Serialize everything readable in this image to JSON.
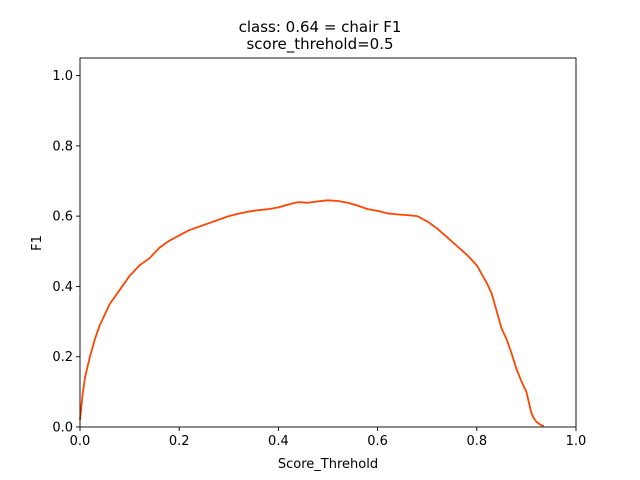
{
  "chart_data": {
    "type": "line",
    "title": "class: 0.64 = chair F1",
    "subtitle": "score_threhold=0.5",
    "xlabel": "Score_Threhold",
    "ylabel": "F1",
    "xlim": [
      0.0,
      1.0
    ],
    "ylim": [
      0.0,
      1.05
    ],
    "xticks": [
      "0.0",
      "0.2",
      "0.4",
      "0.6",
      "0.8",
      "1.0"
    ],
    "yticks": [
      "0.0",
      "0.2",
      "0.4",
      "0.6",
      "0.8",
      "1.0"
    ],
    "grid": false,
    "line_color": "#ff4500",
    "series": [
      {
        "x": [
          0.0,
          0.005,
          0.01,
          0.02,
          0.03,
          0.04,
          0.05,
          0.06,
          0.07,
          0.08,
          0.1,
          0.12,
          0.14,
          0.16,
          0.18,
          0.2,
          0.22,
          0.24,
          0.26,
          0.28,
          0.3,
          0.32,
          0.34,
          0.36,
          0.38,
          0.4,
          0.42,
          0.44,
          0.46,
          0.48,
          0.5,
          0.52,
          0.54,
          0.56,
          0.58,
          0.6,
          0.62,
          0.64,
          0.66,
          0.68,
          0.7,
          0.72,
          0.74,
          0.76,
          0.78,
          0.8,
          0.82,
          0.83,
          0.84,
          0.85,
          0.86,
          0.87,
          0.88,
          0.89,
          0.9,
          0.905,
          0.91,
          0.915,
          0.92,
          0.925,
          0.93,
          0.935
        ],
        "y": [
          0.02,
          0.09,
          0.14,
          0.2,
          0.25,
          0.29,
          0.32,
          0.35,
          0.37,
          0.39,
          0.43,
          0.46,
          0.48,
          0.51,
          0.53,
          0.545,
          0.56,
          0.57,
          0.58,
          0.59,
          0.6,
          0.607,
          0.613,
          0.617,
          0.62,
          0.625,
          0.633,
          0.64,
          0.638,
          0.642,
          0.645,
          0.643,
          0.638,
          0.63,
          0.62,
          0.615,
          0.608,
          0.605,
          0.603,
          0.6,
          0.585,
          0.565,
          0.54,
          0.515,
          0.49,
          0.46,
          0.41,
          0.38,
          0.33,
          0.28,
          0.25,
          0.21,
          0.165,
          0.13,
          0.1,
          0.07,
          0.04,
          0.025,
          0.015,
          0.01,
          0.005,
          0.003
        ]
      }
    ]
  }
}
